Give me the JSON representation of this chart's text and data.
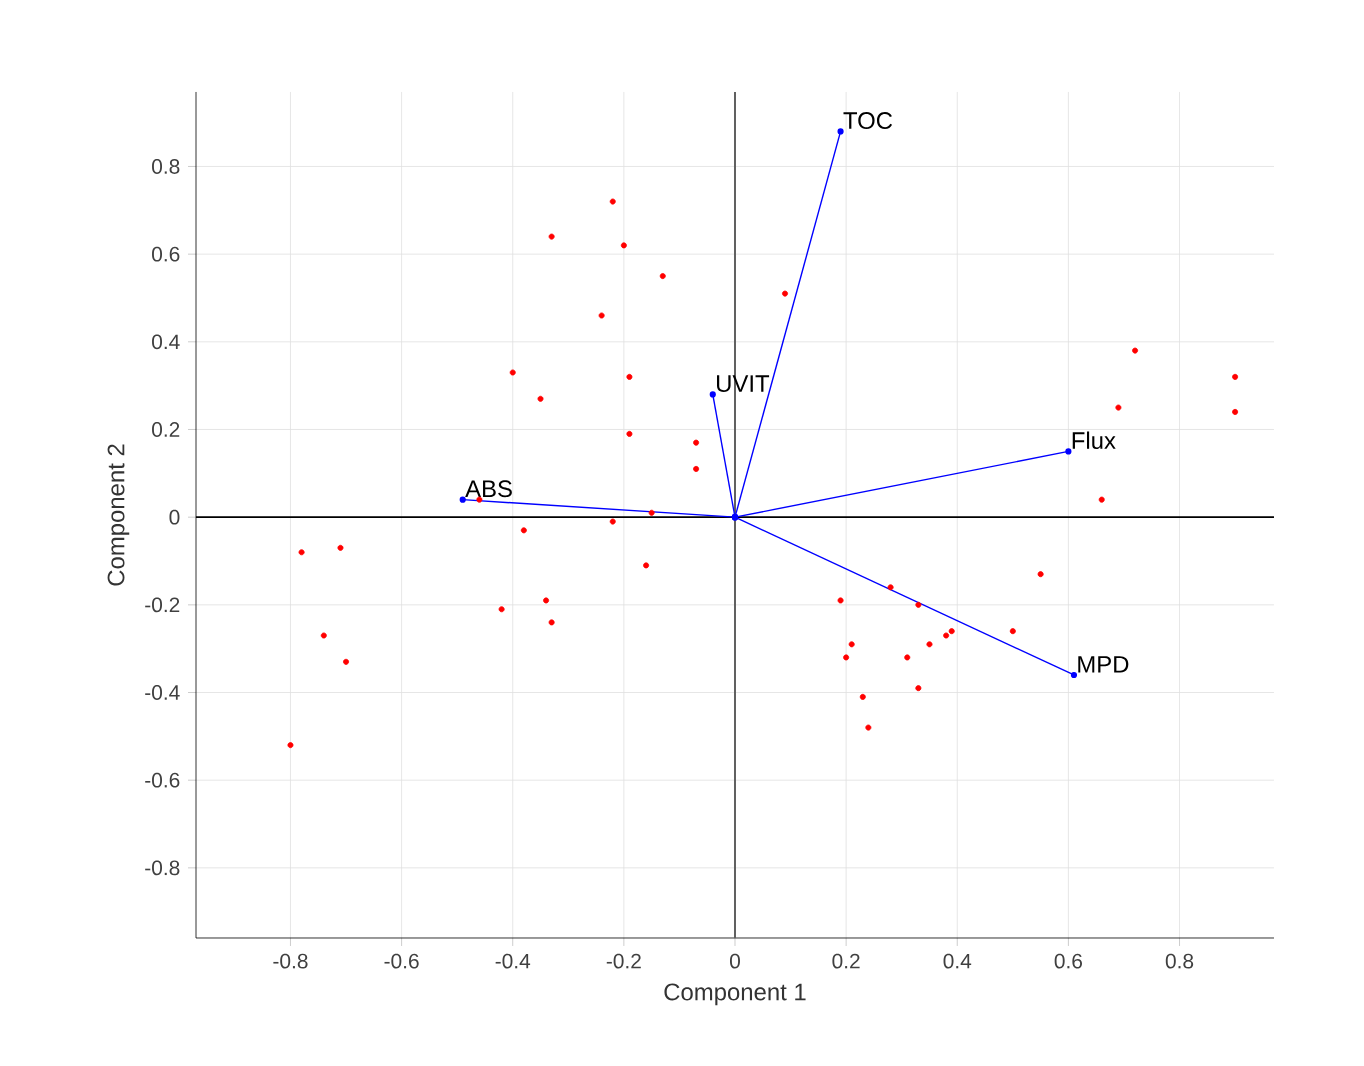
{
  "chart_data": {
    "type": "scatter",
    "xlabel": "Component 1",
    "ylabel": "Component 2",
    "xlim": [
      -0.97,
      0.97
    ],
    "ylim": [
      -0.96,
      0.97
    ],
    "xticks": [
      -0.8,
      -0.6,
      -0.4,
      -0.2,
      0,
      0.2,
      0.4,
      0.6,
      0.8
    ],
    "yticks": [
      -0.8,
      -0.6,
      -0.4,
      -0.2,
      0,
      0.2,
      0.4,
      0.6,
      0.8
    ],
    "grid": true,
    "marker": "circle",
    "ref_lines": [
      {
        "axis": "y",
        "value": 0,
        "color": "#000000"
      },
      {
        "axis": "x",
        "value": 0,
        "color": "#606060"
      }
    ],
    "series": [
      {
        "color": "#ff0000",
        "x": [
          -0.22,
          -0.33,
          -0.2,
          -0.13,
          -0.24,
          -0.4,
          -0.19,
          -0.35,
          -0.19,
          -0.07,
          -0.07,
          -0.46,
          -0.15,
          -0.22,
          -0.38,
          -0.78,
          -0.71,
          -0.16,
          -0.34,
          -0.42,
          -0.33,
          -0.74,
          -0.7,
          -0.8,
          0.09,
          0.72,
          0.9,
          0.69,
          0.9,
          0.66,
          0.55,
          0.28,
          0.19,
          0.33,
          0.5,
          0.39,
          0.38,
          0.35,
          0.21,
          0.2,
          0.31,
          0.33,
          0.23,
          0.24
        ],
        "values": [
          0.72,
          0.64,
          0.62,
          0.55,
          0.46,
          0.33,
          0.32,
          0.27,
          0.19,
          0.17,
          0.11,
          0.04,
          0.01,
          -0.01,
          -0.03,
          -0.08,
          -0.07,
          -0.11,
          -0.19,
          -0.21,
          -0.24,
          -0.27,
          -0.33,
          -0.52,
          0.51,
          0.38,
          0.32,
          0.25,
          0.24,
          0.04,
          -0.13,
          -0.16,
          -0.19,
          -0.2,
          -0.26,
          -0.26,
          -0.27,
          -0.29,
          -0.29,
          -0.32,
          -0.32,
          -0.39,
          -0.41,
          -0.48
        ]
      },
      {
        "type": "line",
        "name": "TOC",
        "color": "#0000ff",
        "x": [
          0,
          0.19
        ],
        "values": [
          0,
          0.88
        ]
      },
      {
        "type": "line",
        "name": "UVIT",
        "color": "#0000ff",
        "x": [
          0,
          -0.04
        ],
        "values": [
          0,
          0.28
        ]
      },
      {
        "type": "line",
        "name": "Flux",
        "color": "#0000ff",
        "x": [
          0,
          0.6
        ],
        "values": [
          0,
          0.15
        ]
      },
      {
        "type": "line",
        "name": "ABS",
        "color": "#0000ff",
        "x": [
          0,
          -0.49
        ],
        "values": [
          0,
          0.04
        ]
      },
      {
        "type": "line",
        "name": "MPD",
        "color": "#0000ff",
        "x": [
          0,
          0.61
        ],
        "values": [
          0,
          -0.36
        ]
      }
    ]
  }
}
